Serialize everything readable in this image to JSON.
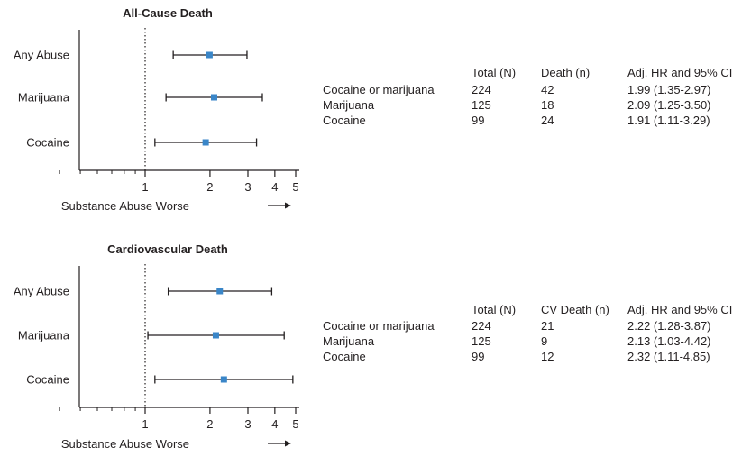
{
  "chart_data": [
    {
      "type": "forest",
      "title": "All-Cause Death",
      "xlabel": "Substance Abuse Worse",
      "x_scale": "log",
      "xlim": [
        0.3,
        5.4
      ],
      "x_ticks": [
        1,
        2,
        3,
        4,
        5
      ],
      "x_tick_labels": [
        "1",
        "2",
        "3",
        "4",
        "5"
      ],
      "reference_line": 1,
      "categories": [
        "Any Abuse",
        "Marijuana",
        "Cocaine"
      ],
      "hr": [
        1.99,
        2.09,
        1.91
      ],
      "ci_low": [
        1.35,
        1.25,
        1.11
      ],
      "ci_high": [
        2.97,
        3.5,
        3.29
      ],
      "marker_color": "#3a86c8",
      "table": {
        "columns": [
          "",
          "Total (N)",
          "Death (n)",
          "Adj. HR and 95% CI"
        ],
        "rows": [
          [
            "Cocaine or marijuana",
            "224",
            "42",
            "1.99 (1.35-2.97)"
          ],
          [
            "Marijuana",
            "125",
            "18",
            "2.09 (1.25-3.50)"
          ],
          [
            "Cocaine",
            "99",
            "24",
            "1.91 (1.11-3.29)"
          ]
        ]
      }
    },
    {
      "type": "forest",
      "title": "Cardiovascular Death",
      "xlabel": "Substance Abuse Worse",
      "x_scale": "log",
      "xlim": [
        0.3,
        5.4
      ],
      "x_ticks": [
        1,
        2,
        3,
        4,
        5
      ],
      "x_tick_labels": [
        "1",
        "2",
        "3",
        "4",
        "5"
      ],
      "reference_line": 1,
      "categories": [
        "Any Abuse",
        "Marijuana",
        "Cocaine"
      ],
      "hr": [
        2.22,
        2.13,
        2.32
      ],
      "ci_low": [
        1.28,
        1.03,
        1.11
      ],
      "ci_high": [
        3.87,
        4.42,
        4.85
      ],
      "marker_color": "#3a86c8",
      "table": {
        "columns": [
          "",
          "Total (N)",
          "CV Death (n)",
          "Adj. HR and 95% CI"
        ],
        "rows": [
          [
            "Cocaine or marijuana",
            "224",
            "21",
            "2.22 (1.28-3.87)"
          ],
          [
            "Marijuana",
            "125",
            "9",
            "2.13 (1.03-4.42)"
          ],
          [
            "Cocaine",
            "99",
            "12",
            "2.32 (1.11-4.85)"
          ]
        ]
      }
    }
  ]
}
